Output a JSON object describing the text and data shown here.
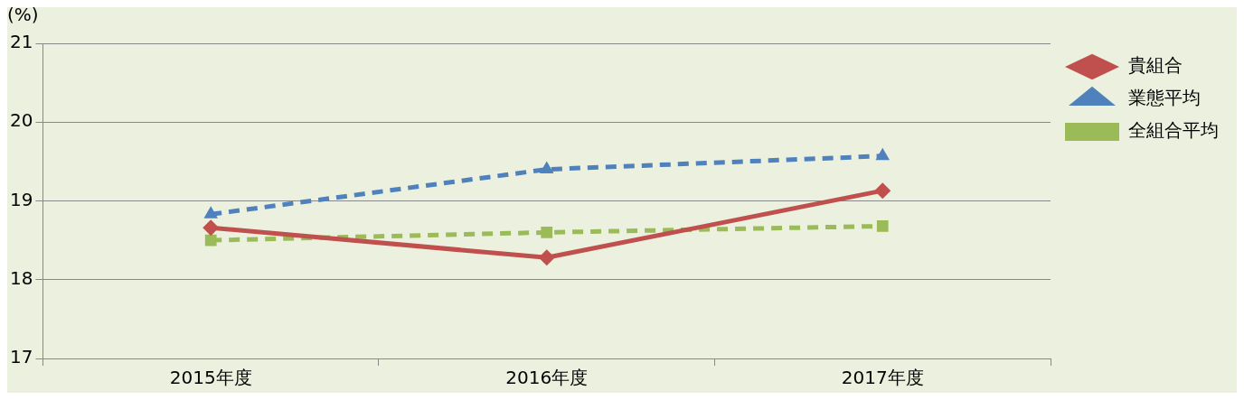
{
  "chart_data": {
    "type": "line",
    "ylabel": "(%)",
    "categories": [
      "2015年度",
      "2016年度",
      "2017年度"
    ],
    "series": [
      {
        "name": "貴組合",
        "color": "#c0504d",
        "values": [
          18.66,
          18.28,
          19.13
        ],
        "marker": "diamond",
        "line_style": "solid"
      },
      {
        "name": "業態平均",
        "color": "#4f81bd",
        "values": [
          18.83,
          19.4,
          19.57
        ],
        "marker": "triangle",
        "line_style": "dashed"
      },
      {
        "name": "全組合平均",
        "color": "#9bbb59",
        "values": [
          18.5,
          18.6,
          18.68
        ],
        "marker": "square",
        "line_style": "dashed"
      }
    ],
    "ylim": [
      17,
      21
    ],
    "yticks": [
      17,
      18,
      19,
      20,
      21
    ],
    "grid": "y",
    "legend": "right"
  }
}
